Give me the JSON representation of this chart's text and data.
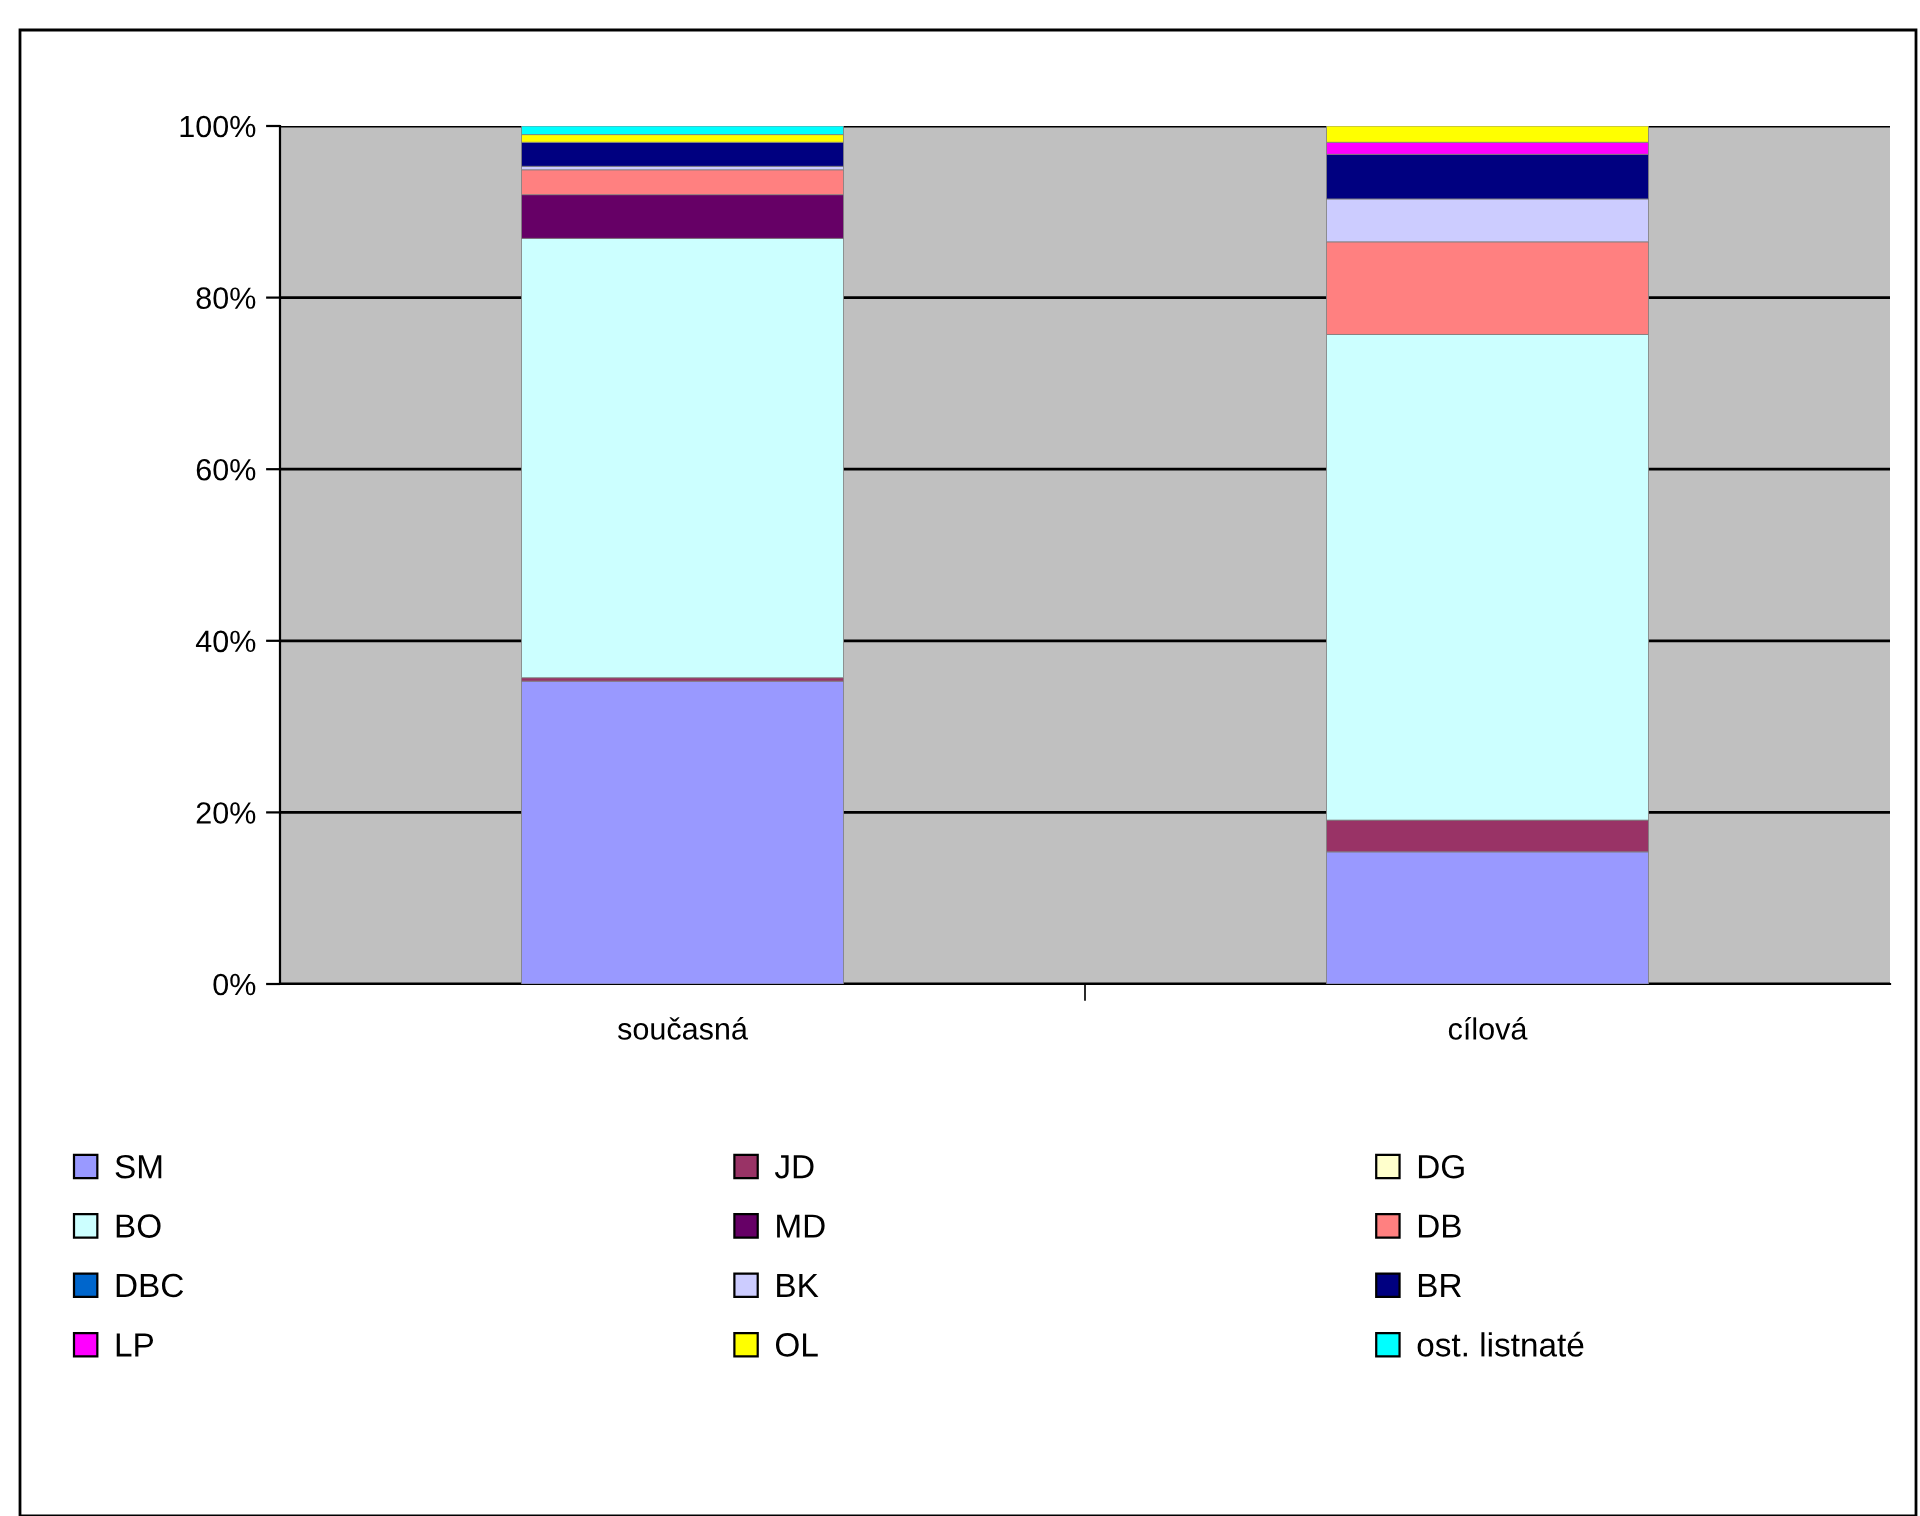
{
  "chart_data": {
    "type": "bar",
    "stacked": true,
    "categories": [
      "současná",
      "cílová"
    ],
    "series": [
      {
        "name": "SM",
        "color": "#9999ff",
        "values": [
          35.3,
          15.4
        ]
      },
      {
        "name": "JD",
        "color": "#993366",
        "values": [
          0.4,
          3.7
        ]
      },
      {
        "name": "DG",
        "color": "#ffffcc",
        "values": [
          0,
          0
        ]
      },
      {
        "name": "BO",
        "color": "#ccffff",
        "values": [
          51.2,
          56.6
        ]
      },
      {
        "name": "MD",
        "color": "#660066",
        "values": [
          5.1,
          0
        ]
      },
      {
        "name": "DB",
        "color": "#ff8080",
        "values": [
          2.9,
          10.8
        ]
      },
      {
        "name": "DBC",
        "color": "#0066cc",
        "values": [
          0,
          0
        ]
      },
      {
        "name": "BK",
        "color": "#ccccff",
        "values": [
          0.4,
          5.0
        ]
      },
      {
        "name": "BR",
        "color": "#000080",
        "values": [
          2.8,
          5.2
        ]
      },
      {
        "name": "LP",
        "color": "#ff00ff",
        "values": [
          0,
          1.4
        ]
      },
      {
        "name": "OL",
        "color": "#ffff00",
        "values": [
          0.9,
          1.9
        ]
      },
      {
        "name": "ost. listnaté",
        "color": "#00ffff",
        "values": [
          1.0,
          0
        ]
      }
    ],
    "ylim": [
      0,
      100
    ],
    "yticks": [
      {
        "value": 0,
        "label": "0%"
      },
      {
        "value": 20,
        "label": "20%"
      },
      {
        "value": 40,
        "label": "40%"
      },
      {
        "value": 60,
        "label": "60%"
      },
      {
        "value": 80,
        "label": "80%"
      },
      {
        "value": 100,
        "label": "100%"
      }
    ],
    "grid": "y",
    "legend": "bottom"
  }
}
